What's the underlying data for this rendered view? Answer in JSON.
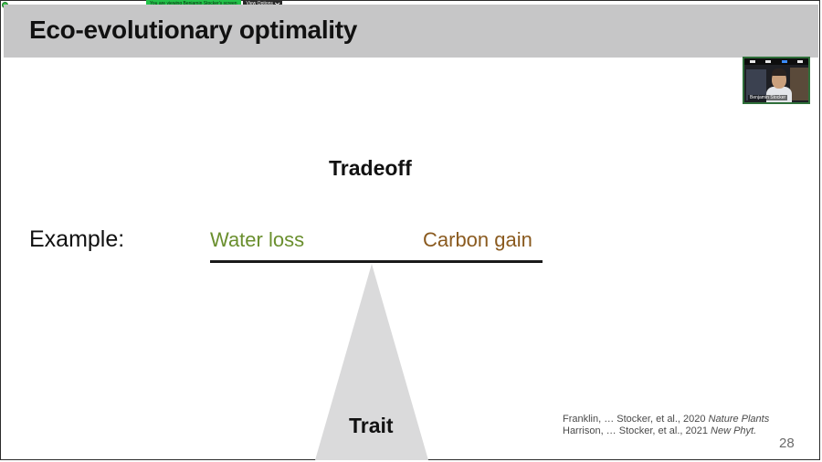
{
  "zoom": {
    "share_notice": "You are viewing Benjamin Stocker's screen",
    "view_options_label": "View Options",
    "participant_name": "Benjamin Stocker",
    "colors": {
      "share_green": "#24c24a",
      "view_options_bg": "#2a2a2a"
    }
  },
  "slide": {
    "title": "Eco-evolutionary optimality",
    "diagram": {
      "tradeoff_label": "Tradeoff",
      "example_label": "Example:",
      "left_label": "Water loss",
      "right_label": "Carbon gain",
      "fulcrum_label": "Trait",
      "colors": {
        "left": "#6a8f2e",
        "right": "#8a5a1f",
        "fulcrum": "#dadadb",
        "header_band": "#c6c6c7"
      }
    },
    "references": [
      {
        "text": "Franklin, … Stocker, et al., 2020 ",
        "journal": "Nature Plants"
      },
      {
        "text": "Harrison, … Stocker, et al., 2021 ",
        "journal": "New Phyt."
      }
    ],
    "page_number": "28"
  }
}
